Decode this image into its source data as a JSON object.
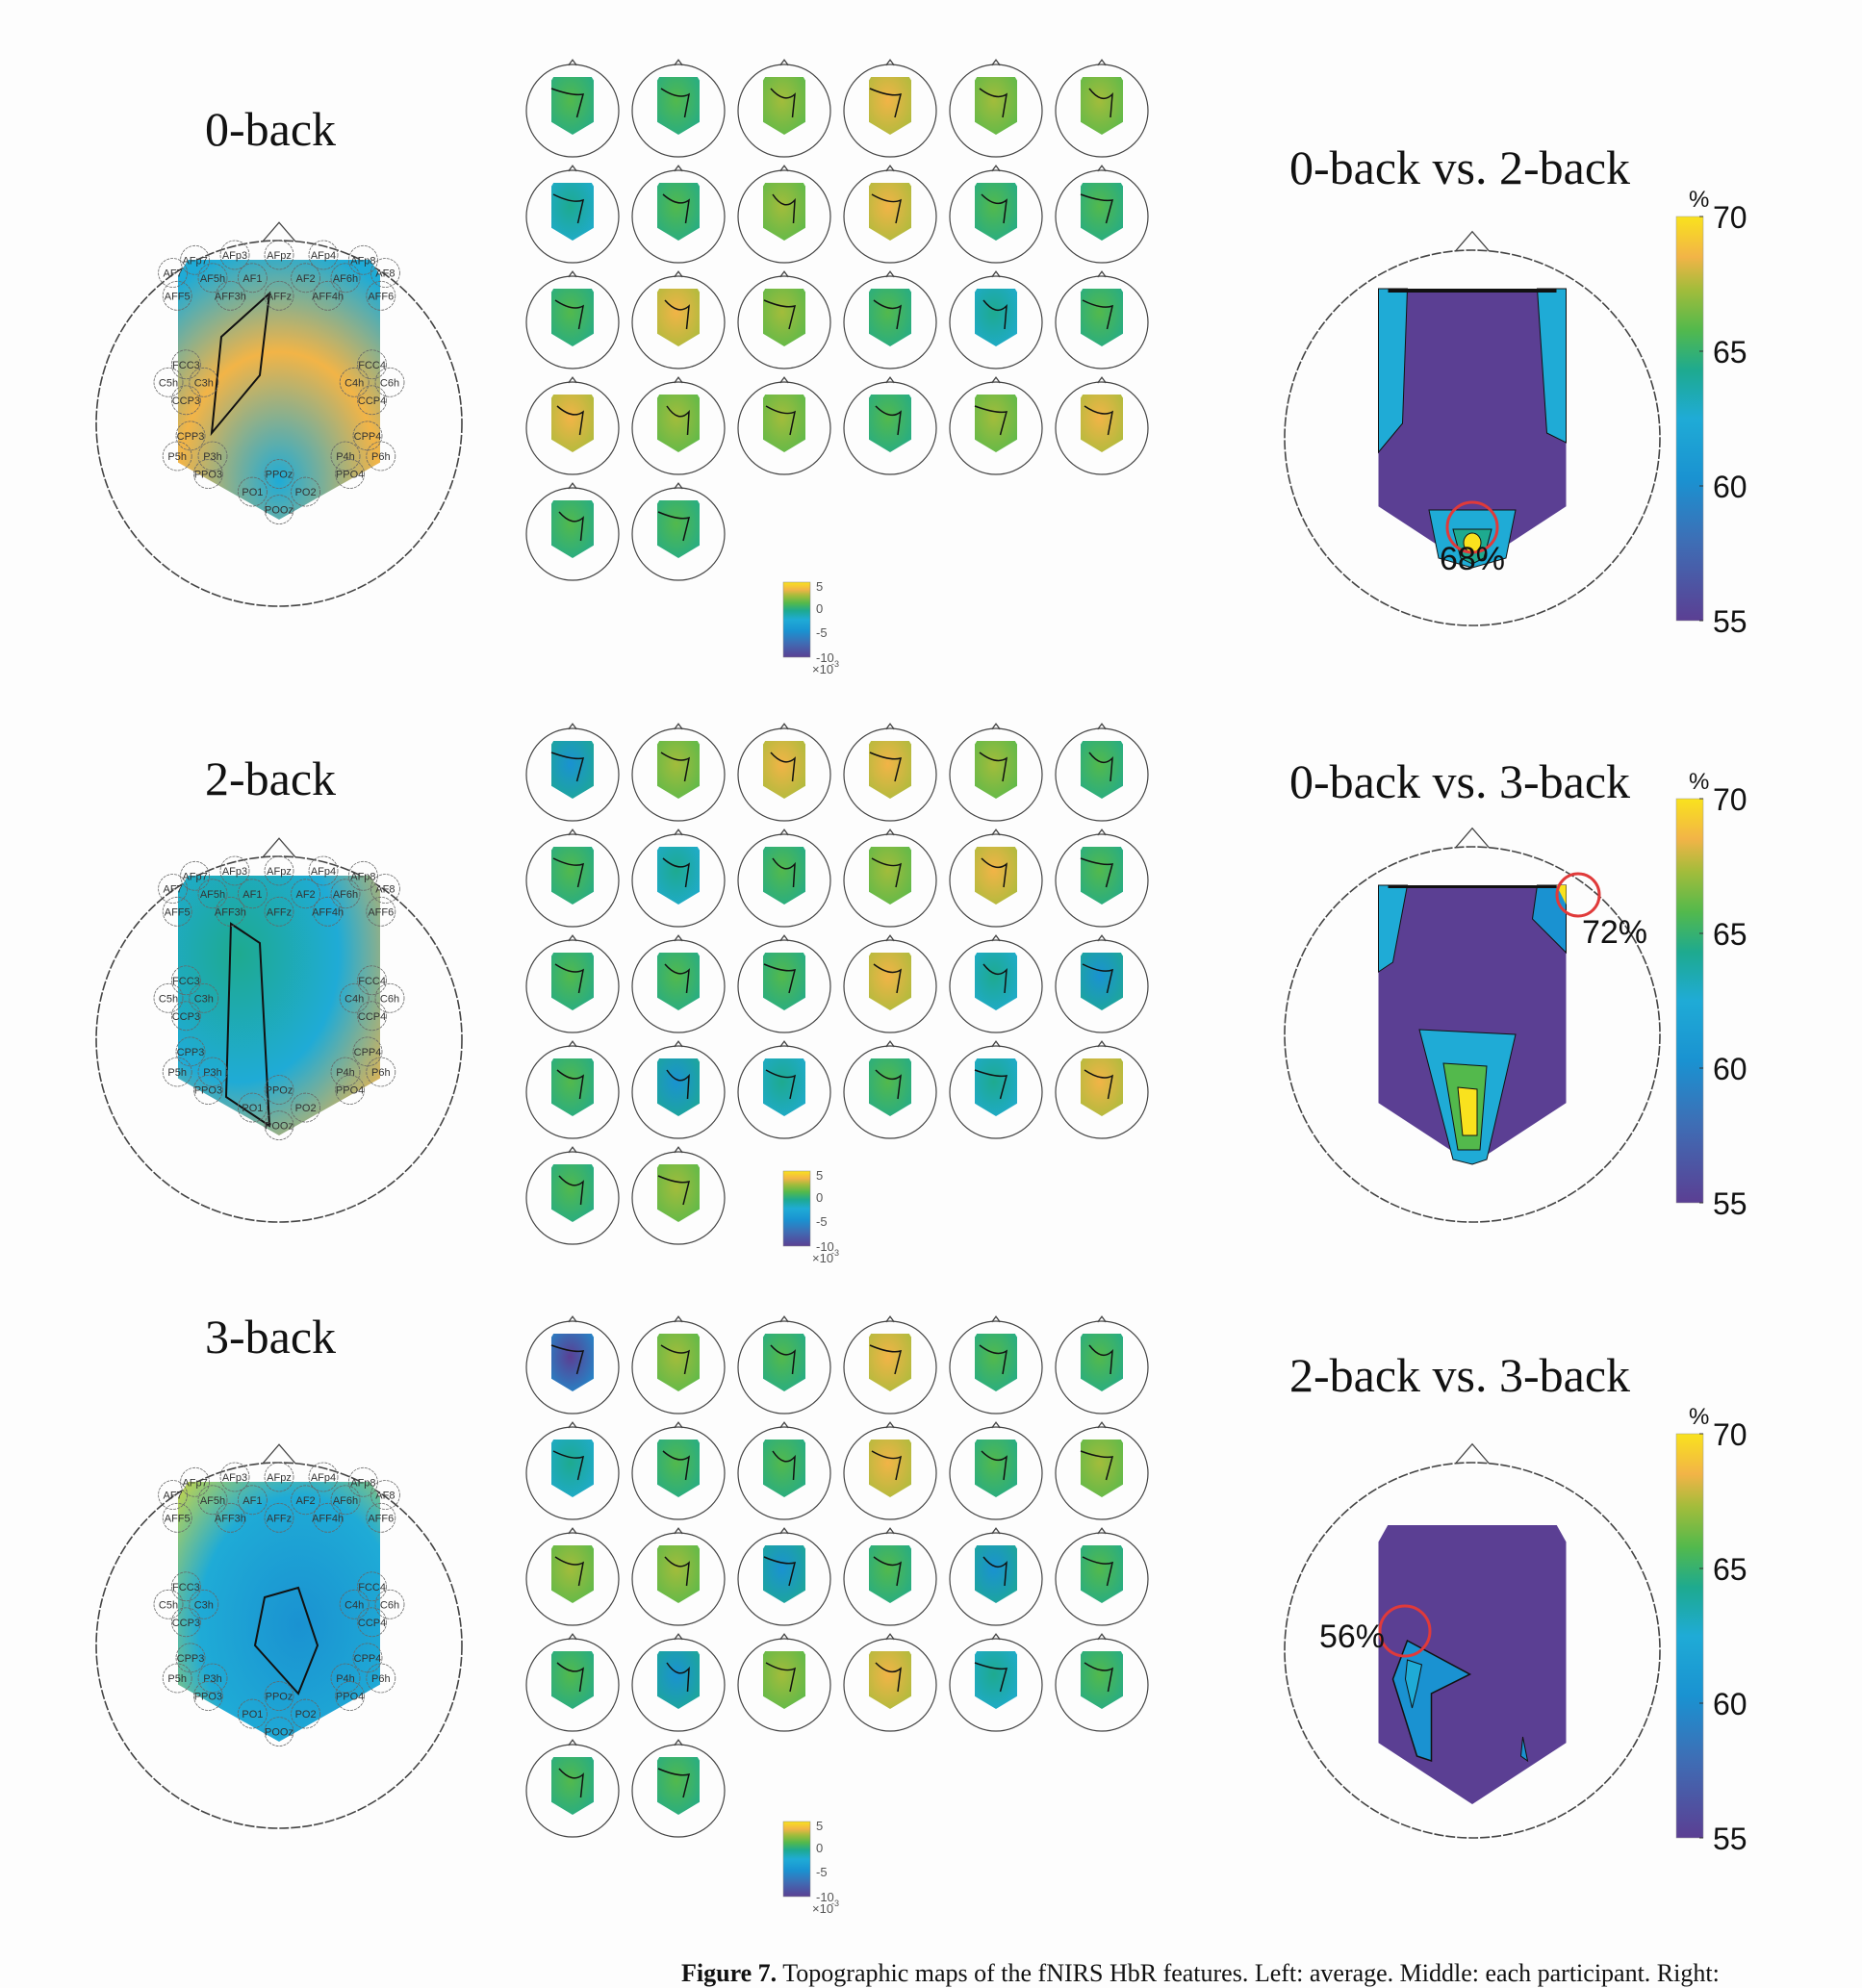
{
  "figure": {
    "caption_label": "Figure 7.",
    "caption_text": " Topographic maps of the fNIRS HbR features. Left: average. Middle: each participant. Right:"
  },
  "conditions": [
    {
      "id": "0back",
      "title": "0-back"
    },
    {
      "id": "2back",
      "title": "2-back"
    },
    {
      "id": "3back",
      "title": "3-back"
    }
  ],
  "channels": [
    "AFp7",
    "AFp3",
    "AFpz",
    "AFp4",
    "AFp8",
    "AF7",
    "AF5h",
    "AF1",
    "AF2",
    "AF6h",
    "AF8",
    "AFF5",
    "AFF3h",
    "AFFz",
    "AFF4h",
    "AFF6",
    "FCC3",
    "FCC4",
    "C5h",
    "C3h",
    "C4h",
    "C6h",
    "CCP3",
    "CCP4",
    "CPP3",
    "CPP4",
    "P5h",
    "P3h",
    "P4h",
    "P6h",
    "PPO3",
    "PPOz",
    "PPO4",
    "PO1",
    "PO2",
    "POOz"
  ],
  "participant_colorbar": {
    "ticks": [
      "5",
      "0",
      "-5",
      "-10"
    ],
    "exponent_label": "×10",
    "exponent_power": "-3",
    "range": [
      -10,
      5
    ]
  },
  "comparisons": [
    {
      "title": "0-back vs. 2-back",
      "peak_label": "68%",
      "peak_value": 68
    },
    {
      "title": "0-back vs. 3-back",
      "peak_label": "72%",
      "peak_value": 72
    },
    {
      "title": "2-back vs. 3-back",
      "peak_label": "56%",
      "peak_value": 56
    }
  ],
  "accuracy_colorbar": {
    "unit": "%",
    "ticks": [
      "70",
      "65",
      "60",
      "55"
    ],
    "range": [
      55,
      70
    ]
  },
  "participant_maps_per_condition": 26,
  "participant_map_tones": {
    "0back": [
      "g",
      "g",
      "y",
      "o",
      "y",
      "y",
      "t",
      "g",
      "y",
      "o",
      "g",
      "g",
      "g",
      "o",
      "y",
      "g",
      "t",
      "g",
      "o",
      "y",
      "y",
      "g",
      "y",
      "o",
      "g",
      "g"
    ],
    "2back": [
      "b",
      "y",
      "o",
      "o",
      "y",
      "g",
      "g",
      "t",
      "g",
      "y",
      "o",
      "g",
      "g",
      "g",
      "g",
      "o",
      "t",
      "b",
      "g",
      "b",
      "t",
      "g",
      "t",
      "o",
      "g",
      "y"
    ],
    "3back": [
      "p",
      "y",
      "g",
      "o",
      "g",
      "g",
      "t",
      "g",
      "g",
      "o",
      "g",
      "y",
      "y",
      "y",
      "b",
      "g",
      "b",
      "g",
      "g",
      "b",
      "y",
      "o",
      "t",
      "g",
      "g",
      "g"
    ]
  },
  "colors": {
    "purple": "#5b3f93",
    "blue": "#1a92d1",
    "cyan": "#1fabd6",
    "teal": "#1eaa8f",
    "green": "#53b94c",
    "yellowgreen": "#a3bc3b",
    "orange": "#f2b447",
    "yellow": "#f9e21e",
    "red_marker": "#e03a3a"
  }
}
